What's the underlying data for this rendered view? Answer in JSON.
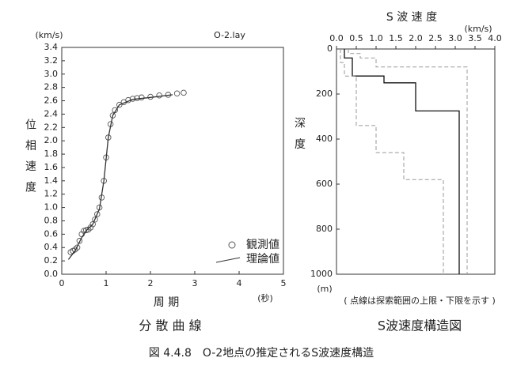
{
  "chart_data": [
    {
      "type": "line",
      "y_unit": "(km/s)",
      "file_label": "O-2.lay",
      "y_label": "位 相 速 度",
      "x_label": "周 期",
      "x_unit": "(秒)",
      "caption": "分 散 曲 線",
      "xlim": [
        0,
        5
      ],
      "xticks": [
        0,
        1,
        2,
        3,
        4,
        5
      ],
      "ylim": [
        0,
        3.4
      ],
      "yticks": [
        {
          "value": 0,
          "label": "0.0"
        },
        0.2,
        0.4,
        0.6,
        0.8,
        {
          "value": 1,
          "label": "1.0"
        },
        1.2,
        1.4,
        1.6,
        1.8,
        {
          "value": 2,
          "label": "2.0"
        },
        2.2,
        2.4,
        2.6,
        2.8,
        {
          "value": 3,
          "label": "3.0"
        },
        3.2,
        3.4
      ],
      "legend": "lower right",
      "series": [
        {
          "name": "観測値",
          "marker": "circle",
          "color": "#555555",
          "x": [
            0.2,
            0.25,
            0.3,
            0.35,
            0.4,
            0.45,
            0.5,
            0.55,
            0.6,
            0.65,
            0.7,
            0.75,
            0.8,
            0.85,
            0.9,
            0.95,
            1.0,
            1.05,
            1.1,
            1.15,
            1.2,
            1.3,
            1.4,
            1.5,
            1.6,
            1.7,
            1.8,
            2.0,
            2.2,
            2.4,
            2.6,
            2.75
          ],
          "values": [
            0.33,
            0.35,
            0.37,
            0.4,
            0.5,
            0.6,
            0.65,
            0.66,
            0.67,
            0.7,
            0.75,
            0.82,
            0.9,
            1.0,
            1.15,
            1.4,
            1.75,
            2.05,
            2.25,
            2.38,
            2.46,
            2.54,
            2.58,
            2.61,
            2.63,
            2.64,
            2.65,
            2.66,
            2.68,
            2.69,
            2.71,
            2.72
          ]
        },
        {
          "name": "理論値",
          "marker": "line",
          "color": "#333333",
          "x": [
            0.15,
            0.3,
            0.45,
            0.55,
            0.7,
            0.85,
            0.95,
            1.05,
            1.15,
            1.3,
            1.6,
            2.0,
            2.5
          ],
          "values": [
            0.22,
            0.35,
            0.55,
            0.65,
            0.75,
            0.98,
            1.4,
            2.05,
            2.38,
            2.54,
            2.62,
            2.65,
            2.69
          ]
        }
      ]
    },
    {
      "type": "line",
      "title": "S 波 速 度",
      "x_unit": "(km/s)",
      "y_label": "深 度",
      "y_unit": "(m)",
      "note": "( 点線は探索範囲の上限・下限を示す )",
      "caption": "S波速度構造図",
      "x_axis_position": "top",
      "y_inverted": true,
      "xlim": [
        0,
        4
      ],
      "xticks": [
        {
          "value": 0,
          "label": "0.0"
        },
        0.5,
        {
          "value": 1,
          "label": "1.0"
        },
        1.5,
        {
          "value": 2,
          "label": "2.0"
        },
        2.5,
        {
          "value": 3,
          "label": "3.0"
        },
        3.5,
        {
          "value": 4,
          "label": "4.0"
        }
      ],
      "ylim": [
        0,
        1000
      ],
      "yticks": [
        0,
        200,
        400,
        600,
        800,
        1000
      ],
      "series": [
        {
          "marker": "line",
          "color": "#111111",
          "x": [
            0.2,
            0.2,
            0.4,
            0.4,
            1.2,
            1.2,
            2.0,
            2.0,
            3.1,
            3.1
          ],
          "values": [
            0,
            40,
            40,
            120,
            120,
            150,
            150,
            275,
            275,
            1000
          ]
        },
        {
          "marker": "dashed",
          "color": "#999999",
          "x": [
            0.1,
            0.1,
            0.2,
            0.2,
            0.5,
            0.5,
            1.0,
            1.0,
            1.7,
            1.7,
            2.7,
            2.7
          ],
          "values": [
            0,
            60,
            60,
            120,
            120,
            340,
            340,
            460,
            460,
            580,
            580,
            1000
          ]
        },
        {
          "marker": "dashed",
          "color": "#999999",
          "x": [
            0.3,
            0.3,
            0.6,
            0.6,
            1.0,
            1.0,
            3.3,
            3.3
          ],
          "values": [
            0,
            20,
            20,
            40,
            40,
            80,
            80,
            1000
          ]
        }
      ]
    }
  ],
  "figure_caption": "図 4.4.8　O-2地点の推定されるS波速度構造"
}
